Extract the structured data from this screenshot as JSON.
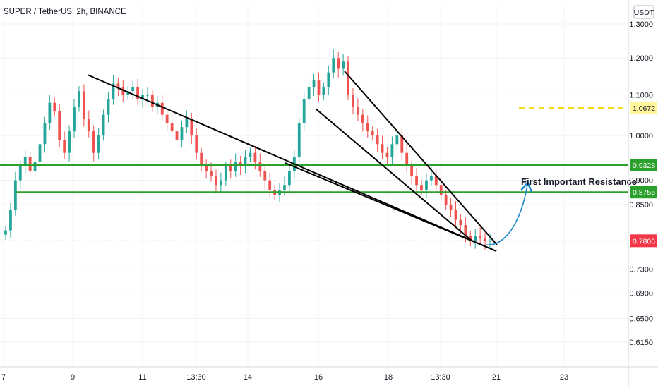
{
  "chart_data": {
    "type": "candlestick",
    "title": "SUPER / TetherUS, 2h, BINANCE",
    "currency": "USDT",
    "y_scale": "log",
    "ylim": [
      0.58,
      1.34
    ],
    "y_ticks": [
      {
        "value": 1.3,
        "label": "1.3000"
      },
      {
        "value": 1.2,
        "label": "1.2000"
      },
      {
        "value": 1.1,
        "label": "1.1000"
      },
      {
        "value": 1.0,
        "label": "1.0000"
      },
      {
        "value": 0.9,
        "label": "0.9000"
      },
      {
        "value": 0.85,
        "label": "0.8500"
      },
      {
        "value": 0.73,
        "label": "0.7300"
      },
      {
        "value": 0.69,
        "label": "0.6900"
      },
      {
        "value": 0.65,
        "label": "0.6500"
      },
      {
        "value": 0.615,
        "label": "0.6150"
      }
    ],
    "x_ticks": [
      "7",
      "9",
      "11",
      "13:30",
      "14",
      "16",
      "18",
      "13:30",
      "21",
      "23"
    ],
    "price_levels": [
      {
        "value": 1.0672,
        "label": "1.0672",
        "style": "dashed",
        "color": "#f5d90a"
      },
      {
        "value": 0.9328,
        "label": "0.9328",
        "style": "solid",
        "color": "#2ca02c"
      },
      {
        "value": 0.8755,
        "label": "0.8755",
        "style": "solid",
        "color": "#2ca02c"
      },
      {
        "value": 0.7806,
        "label": "0.7806",
        "style": "dotted",
        "color": "#f23645"
      }
    ],
    "annotations": [
      {
        "text": "First Important Resistance"
      }
    ],
    "colors": {
      "up": "#26a69a",
      "down": "#ef5350",
      "trendline": "#000000",
      "arrow": "#1e88c8",
      "grid": "#f0f3fa",
      "axis_text": "#131722"
    },
    "candles_close_approx": [
      0.8,
      0.84,
      0.9,
      0.93,
      0.95,
      0.92,
      0.94,
      0.98,
      1.03,
      1.08,
      1.06,
      0.99,
      0.96,
      1.01,
      1.07,
      1.11,
      1.04,
      1.01,
      0.96,
      1.0,
      1.05,
      1.09,
      1.13,
      1.12,
      1.1,
      1.11,
      1.12,
      1.09,
      1.1,
      1.1,
      1.07,
      1.08,
      1.05,
      1.03,
      1.01,
      0.99,
      1.02,
      1.04,
      1.0,
      0.96,
      0.93,
      0.92,
      0.91,
      0.89,
      0.9,
      0.93,
      0.92,
      0.94,
      0.93,
      0.95,
      0.96,
      0.94,
      0.92,
      0.9,
      0.88,
      0.87,
      0.88,
      0.89,
      0.92,
      0.95,
      1.03,
      1.09,
      1.12,
      1.14,
      1.1,
      1.12,
      1.16,
      1.2,
      1.17,
      1.19,
      1.1,
      1.07,
      1.05,
      1.03,
      1.01,
      1.0,
      0.98,
      0.96,
      0.95,
      0.98,
      1.0,
      0.96,
      0.93,
      0.91,
      0.89,
      0.88,
      0.9,
      0.91,
      0.89,
      0.87,
      0.85,
      0.84,
      0.82,
      0.81,
      0.79,
      0.78,
      0.79,
      0.785,
      0.78,
      0.7806
    ]
  }
}
